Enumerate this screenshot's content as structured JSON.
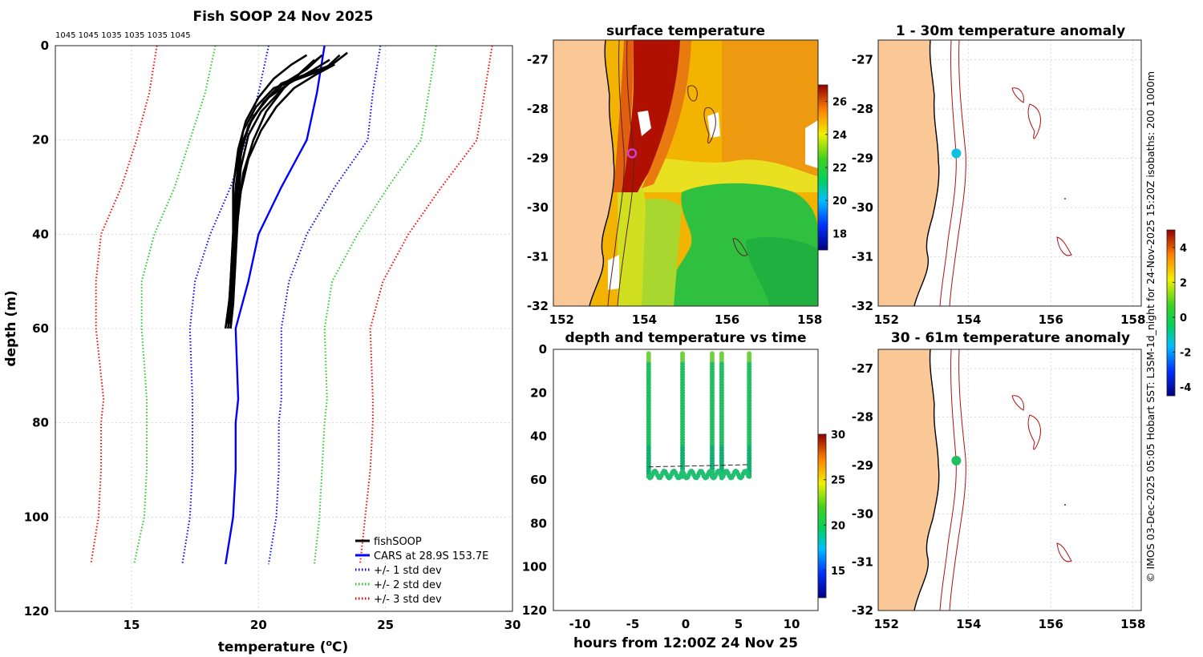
{
  "colors": {
    "obs": "#000000",
    "cars": "#0000ff",
    "std1": "#0000ff",
    "std2": "#22cc22",
    "std3": "#ff0000",
    "land": "#f9c896",
    "grid": "#cfcfcf",
    "isobath": "#b01010",
    "marker_sst": "#cc44cc",
    "marker_anom1": "#10c0e0",
    "marker_anom2": "#20c060"
  },
  "chart_data": [
    {
      "id": "profile",
      "type": "line",
      "title": "Fish SOOP 24 Nov 2025",
      "top_note": "1045 1045 1035 1035 1035 1045",
      "xlabel": "temperature (",
      "xlabel_sup": "o",
      "xlabel_end": "C)",
      "ylabel": "depth (m)",
      "xlim": [
        12,
        30
      ],
      "ylim": [
        0,
        120
      ],
      "xticks": [
        15,
        20,
        25,
        30
      ],
      "yticks": [
        0,
        20,
        40,
        60,
        80,
        100,
        120
      ],
      "legend": [
        "fishSOOP",
        "CARS at 28.9S 153.7E",
        "+/- 1 std dev",
        "+/- 2 std dev",
        "+/- 3 std dev"
      ],
      "legend_position": "bottom-right",
      "depths": [
        0,
        10,
        20,
        30,
        40,
        50,
        60,
        75,
        80,
        90,
        100,
        110
      ],
      "cars_temp": [
        22.6,
        22.3,
        21.9,
        20.9,
        20.0,
        19.6,
        19.1,
        19.2,
        19.1,
        19.1,
        19.0,
        18.7
      ],
      "std1_low": [
        20.4,
        20.0,
        19.5,
        18.9,
        18.1,
        17.5,
        17.3,
        17.4,
        17.4,
        17.4,
        17.3,
        17.0
      ],
      "std1_high": [
        24.8,
        24.5,
        24.3,
        23.0,
        21.9,
        21.2,
        20.9,
        20.9,
        20.8,
        20.8,
        20.7,
        20.4
      ],
      "std2_low": [
        18.3,
        17.9,
        17.3,
        16.7,
        15.9,
        15.4,
        15.4,
        15.6,
        15.6,
        15.6,
        15.5,
        15.1
      ],
      "std2_high": [
        27.0,
        26.7,
        26.4,
        25.1,
        23.9,
        22.9,
        22.6,
        22.7,
        22.6,
        22.5,
        22.4,
        22.2
      ],
      "std3_low": [
        16.0,
        15.7,
        15.2,
        14.6,
        13.8,
        13.6,
        13.6,
        13.9,
        13.8,
        13.8,
        13.7,
        13.4
      ],
      "std3_high": [
        29.2,
        28.9,
        28.6,
        27.2,
        25.9,
        24.9,
        24.4,
        24.5,
        24.5,
        24.4,
        24.2,
        24.0
      ],
      "casts": [
        [
          [
            23.2,
            2
          ],
          [
            22.6,
            5
          ],
          [
            21.6,
            7
          ],
          [
            20.6,
            9
          ],
          [
            19.9,
            13
          ],
          [
            19.4,
            18
          ],
          [
            19.2,
            24
          ],
          [
            19.1,
            32
          ],
          [
            19.0,
            42
          ],
          [
            18.9,
            52
          ],
          [
            18.7,
            60
          ]
        ],
        [
          [
            23.5,
            1.5
          ],
          [
            22.9,
            4
          ],
          [
            21.9,
            6
          ],
          [
            20.9,
            8
          ],
          [
            20.2,
            12
          ],
          [
            19.6,
            17
          ],
          [
            19.3,
            23
          ],
          [
            19.2,
            31
          ],
          [
            19.1,
            41
          ],
          [
            19.0,
            51
          ],
          [
            18.9,
            59
          ]
        ],
        [
          [
            22.8,
            3
          ],
          [
            22.2,
            5
          ],
          [
            21.2,
            8
          ],
          [
            20.4,
            11
          ],
          [
            19.8,
            15
          ],
          [
            19.4,
            20
          ],
          [
            19.2,
            27
          ],
          [
            19.1,
            36
          ],
          [
            19.0,
            46
          ],
          [
            18.9,
            55
          ],
          [
            18.8,
            60
          ]
        ],
        [
          [
            22.5,
            2
          ],
          [
            21.9,
            5
          ],
          [
            21.0,
            8
          ],
          [
            20.2,
            12
          ],
          [
            19.7,
            16
          ],
          [
            19.3,
            22
          ],
          [
            19.1,
            30
          ],
          [
            19.0,
            40
          ],
          [
            18.9,
            50
          ],
          [
            18.8,
            58
          ]
        ],
        [
          [
            22.2,
            3
          ],
          [
            21.6,
            6
          ],
          [
            20.8,
            10
          ],
          [
            20.1,
            14
          ],
          [
            19.6,
            19
          ],
          [
            19.3,
            26
          ],
          [
            19.2,
            34
          ],
          [
            19.1,
            44
          ],
          [
            19.0,
            54
          ],
          [
            18.9,
            60
          ]
        ],
        [
          [
            21.9,
            2
          ],
          [
            21.3,
            4
          ],
          [
            20.6,
            7
          ],
          [
            20.0,
            11
          ],
          [
            19.5,
            16
          ],
          [
            19.2,
            22
          ],
          [
            19.0,
            30
          ],
          [
            19.0,
            40
          ],
          [
            18.9,
            50
          ],
          [
            18.8,
            59
          ]
        ],
        [
          [
            22.4,
            2.5
          ],
          [
            21.8,
            5
          ],
          [
            21.0,
            9
          ],
          [
            20.3,
            14
          ],
          [
            19.8,
            20
          ],
          [
            19.4,
            27
          ],
          [
            19.2,
            35
          ],
          [
            19.1,
            45
          ],
          [
            19.0,
            55
          ],
          [
            18.9,
            60
          ]
        ],
        [
          [
            23.0,
            4
          ],
          [
            22.3,
            6
          ],
          [
            21.4,
            9
          ],
          [
            20.7,
            13
          ],
          [
            20.1,
            18
          ],
          [
            19.6,
            24
          ],
          [
            19.3,
            31
          ],
          [
            19.1,
            41
          ],
          [
            19.0,
            52
          ],
          [
            18.9,
            60
          ]
        ]
      ]
    },
    {
      "id": "sst",
      "type": "heatmap",
      "title": "surface temperature",
      "xlim": [
        151.8,
        158.2
      ],
      "ylim": [
        -32,
        -26.6
      ],
      "xticks": [
        152,
        154,
        156,
        158
      ],
      "yticks": [
        -27,
        -28,
        -29,
        -30,
        -31,
        -32
      ],
      "colorbar_ticks": [
        18,
        20,
        22,
        24,
        26
      ],
      "colorbar_range": [
        17,
        27
      ]
    },
    {
      "id": "time",
      "type": "scatter",
      "title": "depth and temperature vs time",
      "xlabel": "hours from 12:00Z 24 Nov 25",
      "xlim": [
        -12.5,
        12.5
      ],
      "ylim": [
        0,
        120
      ],
      "xticks": [
        -10,
        -5,
        0,
        5,
        10
      ],
      "yticks": [
        0,
        20,
        40,
        60,
        80,
        100,
        120
      ],
      "colorbar_ticks": [
        15,
        20,
        25,
        30
      ],
      "colorbar_range": [
        12,
        30
      ],
      "casts_hours": [
        -3.5,
        -0.3,
        2.5,
        3.4,
        6.0
      ]
    },
    {
      "id": "anom1",
      "type": "heatmap",
      "title": "1 - 30m temperature anomaly",
      "xlim": [
        151.8,
        158.2
      ],
      "ylim": [
        -32,
        -26.6
      ],
      "xticks": [
        152,
        154,
        156,
        158
      ],
      "yticks": [
        -27,
        -28,
        -29,
        -30,
        -31,
        -32
      ]
    },
    {
      "id": "anom2",
      "type": "heatmap",
      "title": "30 - 61m temperature anomaly",
      "xlim": [
        151.8,
        158.2
      ],
      "ylim": [
        -32,
        -26.6
      ],
      "xticks": [
        152,
        154,
        156,
        158
      ],
      "yticks": [
        -27,
        -28,
        -29,
        -30,
        -31,
        -32
      ]
    },
    {
      "id": "anom_colorbar",
      "type": "heatmap",
      "colorbar_ticks": [
        -4,
        -2,
        0,
        2,
        4
      ],
      "colorbar_range": [
        -4.5,
        5
      ]
    }
  ],
  "station": {
    "lon": 153.7,
    "lat": -28.9
  },
  "side_caption": "© IMOS 03-Dec-2025 05:05 Hobart SST: L3SM-1d_night for 24-Nov-2025 15:20Z isobaths: 200  1000m"
}
